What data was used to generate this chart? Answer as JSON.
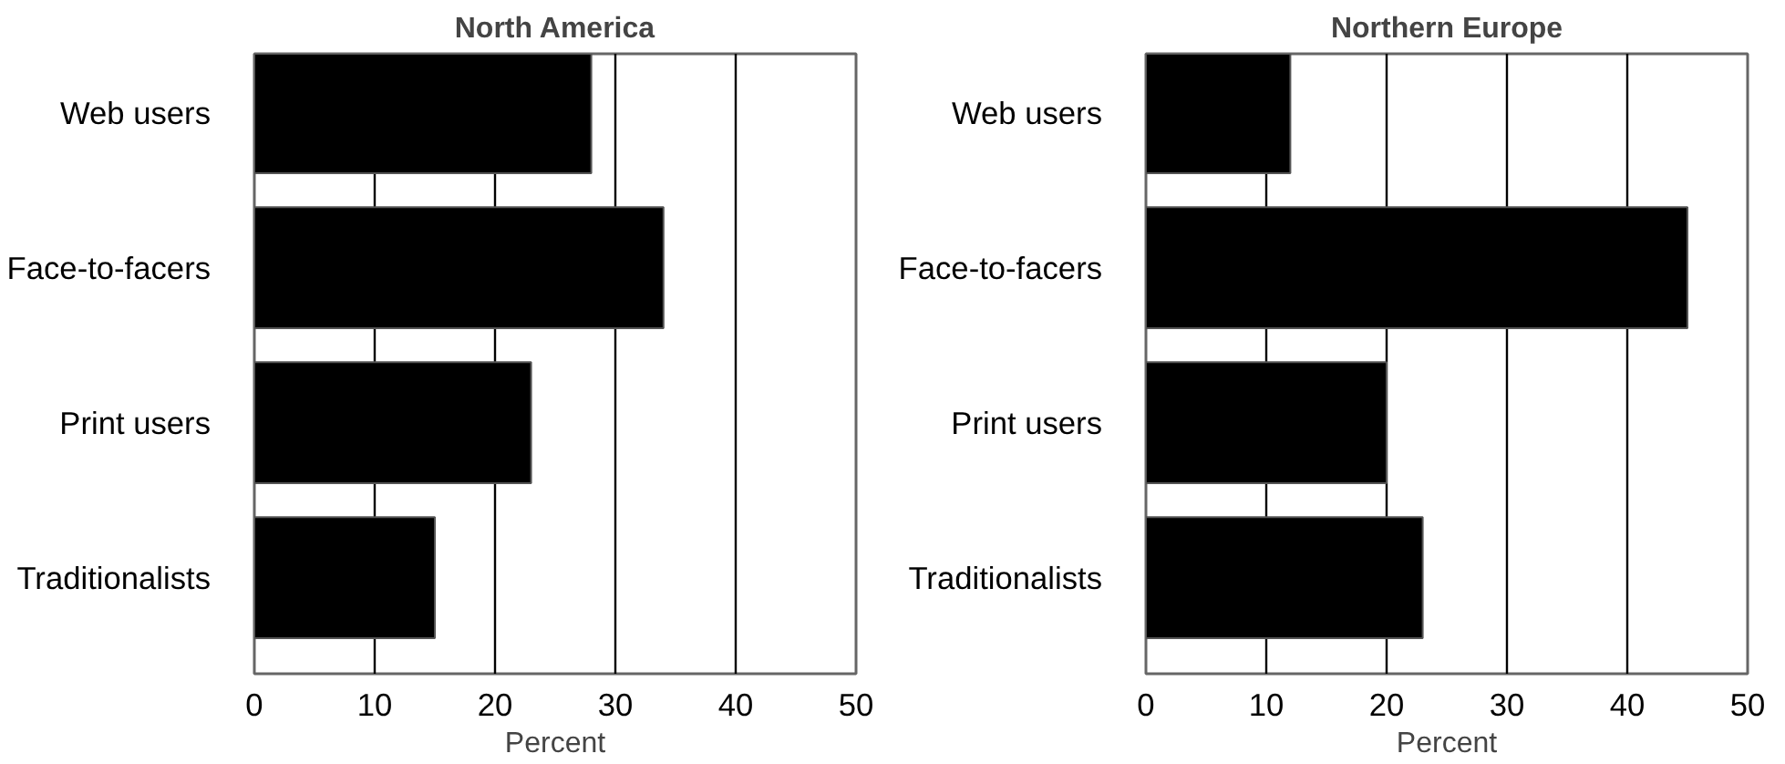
{
  "chart_data": [
    {
      "type": "bar",
      "orientation": "horizontal",
      "title": "North America",
      "xlabel": "Percent",
      "categories": [
        "Web users",
        "Face-to-facers",
        "Print users",
        "Traditionalists"
      ],
      "values": [
        28,
        34,
        23,
        15
      ],
      "color": "#000000",
      "xlim": [
        0,
        50
      ],
      "xticks": [
        0,
        10,
        20,
        30,
        40,
        50
      ],
      "grid": "x"
    },
    {
      "type": "bar",
      "orientation": "horizontal",
      "title": "Northern Europe",
      "xlabel": "Percent",
      "categories": [
        "Web users",
        "Face-to-facers",
        "Print users",
        "Traditionalists"
      ],
      "values": [
        12,
        45,
        20,
        23
      ],
      "color": "#000000",
      "xlim": [
        0,
        50
      ],
      "xticks": [
        0,
        10,
        20,
        30,
        40,
        50
      ],
      "grid": "x"
    }
  ]
}
